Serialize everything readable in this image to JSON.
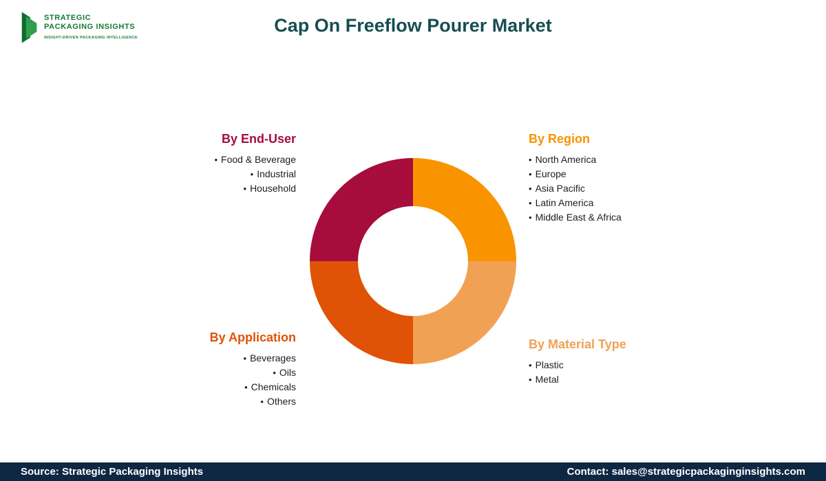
{
  "header": {
    "logo": {
      "line1": "STRATEGIC",
      "line2": "PACKAGING INSIGHTS",
      "tagline": "INSIGHT-DRIVEN PACKAGING INTELLIGENCE"
    },
    "title": "Cap On Freeflow Pourer Market"
  },
  "colors": {
    "title": "#174E51",
    "footer_bg": "#0E2743",
    "logo_green": "#117B34"
  },
  "groups": [
    {
      "heading": "By End-User",
      "color": "#A60D3C",
      "items": [
        "Food & Beverage",
        "Industrial",
        "Household"
      ]
    },
    {
      "heading": "By Region",
      "color": "#F99300",
      "items": [
        "North America",
        "Europe",
        "Asia Pacific",
        "Latin America",
        "Middle East & Africa"
      ]
    },
    {
      "heading": "By Application",
      "color": "#E05206",
      "items": [
        "Beverages",
        "Oils",
        "Chemicals",
        "Others"
      ]
    },
    {
      "heading": "By Material Type",
      "color": "#F1A154",
      "items": [
        "Plastic",
        "Metal"
      ]
    }
  ],
  "chart_data": {
    "type": "pie",
    "title": "Cap On Freeflow Pourer Market",
    "donut": true,
    "legend_position": "around",
    "segments": [
      {
        "label": "By Region",
        "value": 25,
        "color": "#F99300"
      },
      {
        "label": "By Material Type",
        "value": 25,
        "color": "#F1A154"
      },
      {
        "label": "By Application",
        "value": 25,
        "color": "#E05206"
      },
      {
        "label": "By End-User",
        "value": 25,
        "color": "#A60D3C"
      }
    ],
    "note": "Four equal quadrants used as a market-segmentation wheel; each quadrant color matches its adjacent category heading"
  },
  "footer": {
    "source": "Source: Strategic Packaging Insights",
    "contact": "Contact: sales@strategicpackaginginsights.com"
  }
}
